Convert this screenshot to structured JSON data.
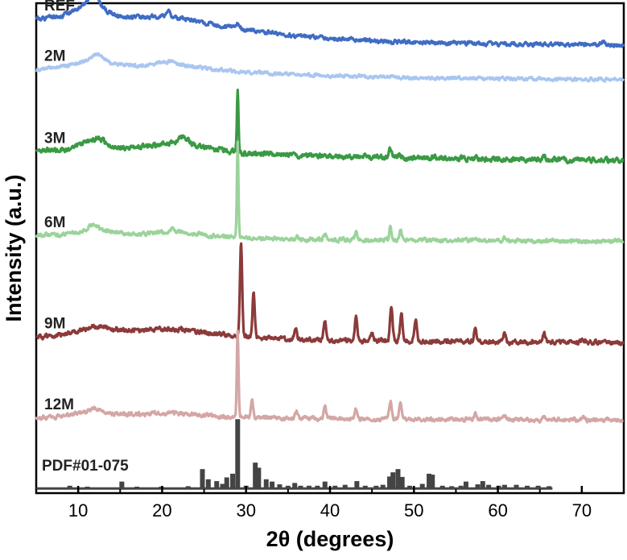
{
  "chart_data": {
    "type": "line",
    "xlabel": "2θ (degrees)",
    "ylabel": "Intensity (a.u.)",
    "xlim": [
      5,
      75
    ],
    "xticks": [
      10,
      20,
      30,
      40,
      50,
      60,
      70
    ],
    "y_tick_labels": "none",
    "grid": false,
    "legend": "inline labels at left of each trace",
    "series": [
      {
        "name": "REF",
        "color": "#3f6cc4",
        "offset": 9.6,
        "baseline": [
          [
            5,
            0.55
          ],
          [
            8,
            0.62
          ],
          [
            10,
            0.78
          ],
          [
            11.5,
            0.95
          ],
          [
            13,
            0.75
          ],
          [
            15,
            0.62
          ],
          [
            18,
            0.6
          ],
          [
            20,
            0.62
          ],
          [
            23,
            0.55
          ],
          [
            26,
            0.45
          ],
          [
            30,
            0.33
          ],
          [
            35,
            0.22
          ],
          [
            40,
            0.14
          ],
          [
            45,
            0.08
          ],
          [
            50,
            0.05
          ],
          [
            60,
            0.02
          ],
          [
            70,
            0.0
          ],
          [
            75,
            0.0
          ]
        ],
        "peaks": [
          [
            12,
            0.18,
            0.6
          ],
          [
            20.8,
            0.15,
            0.2
          ],
          [
            29,
            0.08,
            0.2
          ],
          [
            72.5,
            0.08,
            0.2
          ]
        ],
        "noise": 0.035,
        "seed": 1
      },
      {
        "name": "2M",
        "color": "#a9c6f0",
        "offset": 8.85,
        "baseline": [
          [
            5,
            0.2
          ],
          [
            8,
            0.28
          ],
          [
            11,
            0.4
          ],
          [
            12.5,
            0.5
          ],
          [
            14,
            0.35
          ],
          [
            17,
            0.3
          ],
          [
            20,
            0.35
          ],
          [
            23,
            0.3
          ],
          [
            26,
            0.22
          ],
          [
            30,
            0.16
          ],
          [
            40,
            0.08
          ],
          [
            50,
            0.04
          ],
          [
            60,
            0.02
          ],
          [
            75,
            0.0
          ]
        ],
        "peaks": [
          [
            12,
            0.08,
            0.5
          ],
          [
            21,
            0.06,
            0.6
          ]
        ],
        "noise": 0.03,
        "seed": 2
      },
      {
        "name": "3M",
        "color": "#3a9a44",
        "offset": 7.1,
        "baseline": [
          [
            5,
            0.18
          ],
          [
            9,
            0.25
          ],
          [
            11,
            0.4
          ],
          [
            13,
            0.35
          ],
          [
            15,
            0.28
          ],
          [
            18,
            0.3
          ],
          [
            21,
            0.38
          ],
          [
            23,
            0.36
          ],
          [
            26,
            0.25
          ],
          [
            30,
            0.15
          ],
          [
            40,
            0.08
          ],
          [
            50,
            0.05
          ],
          [
            60,
            0.03
          ],
          [
            75,
            0.0
          ]
        ],
        "peaks": [
          [
            12.5,
            0.12,
            0.5
          ],
          [
            22.5,
            0.12,
            0.5
          ],
          [
            29,
            1.35,
            0.09
          ],
          [
            47.2,
            0.2,
            0.15
          ],
          [
            48.2,
            0.08,
            0.15
          ],
          [
            65.5,
            0.06,
            0.2
          ]
        ],
        "noise": 0.045,
        "seed": 3
      },
      {
        "name": "6M",
        "color": "#9bd39a",
        "offset": 5.35,
        "baseline": [
          [
            5,
            0.12
          ],
          [
            8,
            0.15
          ],
          [
            10,
            0.2
          ],
          [
            12,
            0.3
          ],
          [
            14,
            0.2
          ],
          [
            17,
            0.15
          ],
          [
            21,
            0.2
          ],
          [
            24,
            0.16
          ],
          [
            27,
            0.1
          ],
          [
            30,
            0.06
          ],
          [
            40,
            0.03
          ],
          [
            75,
            0.0
          ]
        ],
        "peaks": [
          [
            11.8,
            0.1,
            0.4
          ],
          [
            21.2,
            0.08,
            0.3
          ],
          [
            29,
            2.1,
            0.09
          ],
          [
            36,
            0.08,
            0.15
          ],
          [
            39.4,
            0.15,
            0.15
          ],
          [
            43.1,
            0.18,
            0.12
          ],
          [
            47.2,
            0.3,
            0.13
          ],
          [
            48.4,
            0.22,
            0.13
          ],
          [
            57.3,
            0.06,
            0.15
          ],
          [
            60.8,
            0.06,
            0.15
          ]
        ],
        "noise": 0.035,
        "seed": 4
      },
      {
        "name": "9M",
        "color": "#8c3a3a",
        "offset": 3.15,
        "baseline": [
          [
            5,
            0.12
          ],
          [
            9,
            0.2
          ],
          [
            11,
            0.3
          ],
          [
            12,
            0.38
          ],
          [
            14,
            0.3
          ],
          [
            17,
            0.26
          ],
          [
            20,
            0.3
          ],
          [
            23,
            0.28
          ],
          [
            26,
            0.2
          ],
          [
            29,
            0.15
          ],
          [
            35,
            0.08
          ],
          [
            40,
            0.05
          ],
          [
            50,
            0.04
          ],
          [
            60,
            0.02
          ],
          [
            75,
            0.0
          ]
        ],
        "peaks": [
          [
            29.4,
            2.0,
            0.13
          ],
          [
            30.9,
            1.0,
            0.13
          ],
          [
            35.9,
            0.25,
            0.15
          ],
          [
            39.4,
            0.45,
            0.15
          ],
          [
            43.1,
            0.5,
            0.15
          ],
          [
            45,
            0.2,
            0.13
          ],
          [
            47.3,
            0.7,
            0.15
          ],
          [
            48.5,
            0.6,
            0.15
          ],
          [
            50.2,
            0.45,
            0.15
          ],
          [
            57.3,
            0.3,
            0.15
          ],
          [
            60.8,
            0.2,
            0.15
          ],
          [
            65.5,
            0.2,
            0.18
          ],
          [
            70.2,
            0.08,
            0.2
          ]
        ],
        "noise": 0.04,
        "seed": 5
      },
      {
        "name": "12M",
        "color": "#d4a6a6",
        "offset": 1.48,
        "baseline": [
          [
            5,
            0.05
          ],
          [
            8,
            0.08
          ],
          [
            11,
            0.18
          ],
          [
            12.5,
            0.22
          ],
          [
            14,
            0.15
          ],
          [
            17,
            0.12
          ],
          [
            21,
            0.16
          ],
          [
            24,
            0.12
          ],
          [
            27,
            0.07
          ],
          [
            30,
            0.05
          ],
          [
            40,
            0.03
          ],
          [
            75,
            0.0
          ]
        ],
        "peaks": [
          [
            11.8,
            0.06,
            0.4
          ],
          [
            29,
            1.85,
            0.1
          ],
          [
            30.7,
            0.38,
            0.14
          ],
          [
            36,
            0.15,
            0.15
          ],
          [
            39.4,
            0.25,
            0.15
          ],
          [
            43.1,
            0.22,
            0.15
          ],
          [
            47.2,
            0.4,
            0.15
          ],
          [
            48.4,
            0.35,
            0.15
          ],
          [
            57.3,
            0.12,
            0.15
          ],
          [
            60.8,
            0.08,
            0.15
          ],
          [
            65.5,
            0.06,
            0.15
          ],
          [
            70.2,
            0.06,
            0.15
          ]
        ],
        "noise": 0.035,
        "seed": 6
      }
    ],
    "reference": {
      "name": "PDF#01-075",
      "color": "#444444",
      "sticks": [
        [
          9,
          0.06
        ],
        [
          11.1,
          0.04
        ],
        [
          15.2,
          0.15
        ],
        [
          17,
          0.04
        ],
        [
          19.9,
          0.04
        ],
        [
          23.1,
          0.05
        ],
        [
          24.8,
          0.42
        ],
        [
          25.5,
          0.2
        ],
        [
          26.5,
          0.16
        ],
        [
          27.2,
          0.1
        ],
        [
          27.7,
          0.24
        ],
        [
          28.4,
          0.32
        ],
        [
          29.0,
          1.5
        ],
        [
          30.0,
          0.06
        ],
        [
          31.1,
          0.56
        ],
        [
          31.5,
          0.45
        ],
        [
          32.4,
          0.2
        ],
        [
          33.1,
          0.15
        ],
        [
          34,
          0.09
        ],
        [
          35,
          0.06
        ],
        [
          35.8,
          0.12
        ],
        [
          36.5,
          0.06
        ],
        [
          37.5,
          0.06
        ],
        [
          38.5,
          0.06
        ],
        [
          39.4,
          0.15
        ],
        [
          40.6,
          0.06
        ],
        [
          41.8,
          0.08
        ],
        [
          43.2,
          0.16
        ],
        [
          44.2,
          0.06
        ],
        [
          45.5,
          0.06
        ],
        [
          46.3,
          0.08
        ],
        [
          47.1,
          0.26
        ],
        [
          47.5,
          0.35
        ],
        [
          48.1,
          0.42
        ],
        [
          48.6,
          0.25
        ],
        [
          49.5,
          0.06
        ],
        [
          51.0,
          0.1
        ],
        [
          51.8,
          0.32
        ],
        [
          52.2,
          0.3
        ],
        [
          53.4,
          0.06
        ],
        [
          54.5,
          0.05
        ],
        [
          55.6,
          0.06
        ],
        [
          56.2,
          0.15
        ],
        [
          57.6,
          0.09
        ],
        [
          58.2,
          0.16
        ],
        [
          58.9,
          0.08
        ],
        [
          60.1,
          0.06
        ],
        [
          60.8,
          0.08
        ],
        [
          62.2,
          0.08
        ],
        [
          63.5,
          0.06
        ],
        [
          64.8,
          0.06
        ],
        [
          66.1,
          0.05
        ]
      ]
    }
  }
}
